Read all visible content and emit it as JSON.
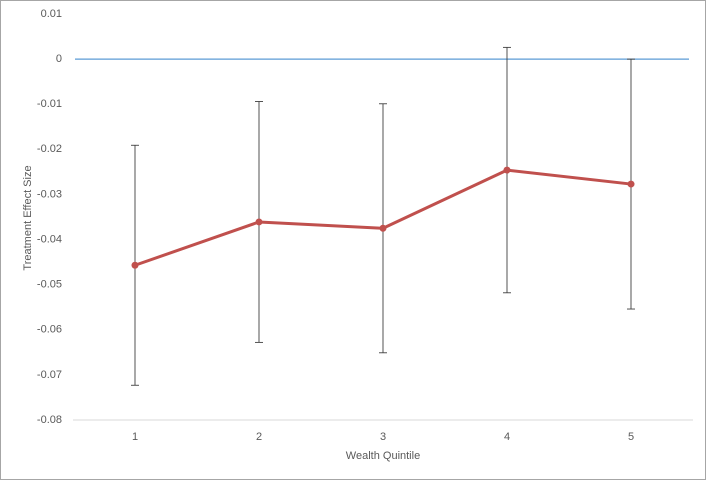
{
  "chart_data": {
    "type": "line",
    "x_label": "Wealth Quintile",
    "y_label": "Treatment Effect Size",
    "categories": [
      "1",
      "2",
      "3",
      "4",
      "5"
    ],
    "series": [
      {
        "color": "#c0504d",
        "values": [
          -0.0457,
          -0.0361,
          -0.0375,
          -0.0246,
          -0.0277
        ],
        "errors": [
          0.0266,
          0.0267,
          0.0276,
          0.0272,
          0.0277
        ]
      }
    ],
    "reference_line": {
      "value": 0,
      "color": "#5b9bd5"
    },
    "ylim": [
      -0.08,
      0.01
    ],
    "yticks": [
      -0.08,
      -0.07,
      -0.06,
      -0.05,
      -0.04,
      -0.03,
      -0.02,
      -0.01,
      0,
      0.01
    ]
  }
}
